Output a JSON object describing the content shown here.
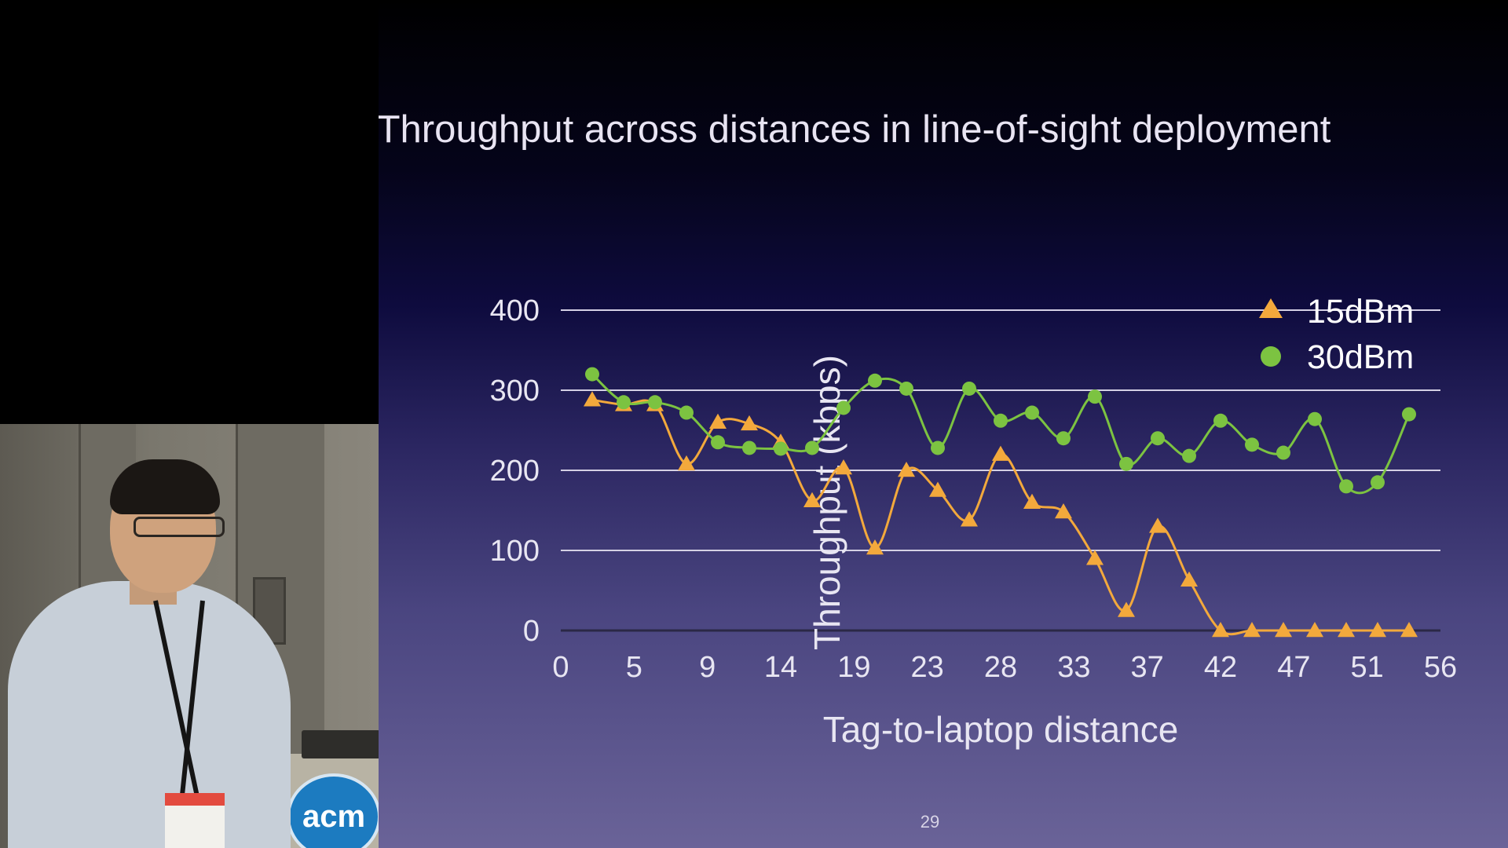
{
  "slide": {
    "title": "Throughput across distances in line-of-sight deployment",
    "page_number": "29"
  },
  "speaker_pane": {
    "badge_text": "acm"
  },
  "chart_data": {
    "type": "line",
    "title": "Throughput across distances in line-of-sight deployment",
    "xlabel": "Tag-to-laptop distance",
    "ylabel": "Throughput (kbps)",
    "xlim": [
      0,
      56
    ],
    "ylim": [
      0,
      400
    ],
    "x_ticks": [
      "0",
      "5",
      "9",
      "14",
      "19",
      "23",
      "28",
      "33",
      "37",
      "42",
      "47",
      "51",
      "56"
    ],
    "y_ticks": [
      "0",
      "100",
      "200",
      "300",
      "400"
    ],
    "grid": true,
    "legend_position": "top-right",
    "x": [
      2,
      4,
      6,
      8,
      10,
      12,
      14,
      16,
      18,
      20,
      22,
      24,
      26,
      28,
      30,
      32,
      34,
      36,
      38,
      40,
      42,
      44,
      46,
      48,
      50,
      52,
      54
    ],
    "series": [
      {
        "name": "15dBm",
        "marker": "triangle",
        "color": "#f3a93c",
        "values": [
          288,
          282,
          282,
          208,
          260,
          258,
          235,
          162,
          203,
          103,
          200,
          175,
          138,
          220,
          160,
          148,
          90,
          25,
          130,
          63,
          0,
          0,
          0,
          0,
          0,
          0,
          0
        ]
      },
      {
        "name": "30dBm",
        "marker": "circle",
        "color": "#7cc341",
        "values": [
          320,
          285,
          285,
          272,
          235,
          228,
          227,
          228,
          278,
          312,
          302,
          228,
          302,
          262,
          272,
          240,
          292,
          208,
          240,
          218,
          262,
          232,
          222,
          264,
          180,
          185,
          270
        ]
      }
    ]
  }
}
